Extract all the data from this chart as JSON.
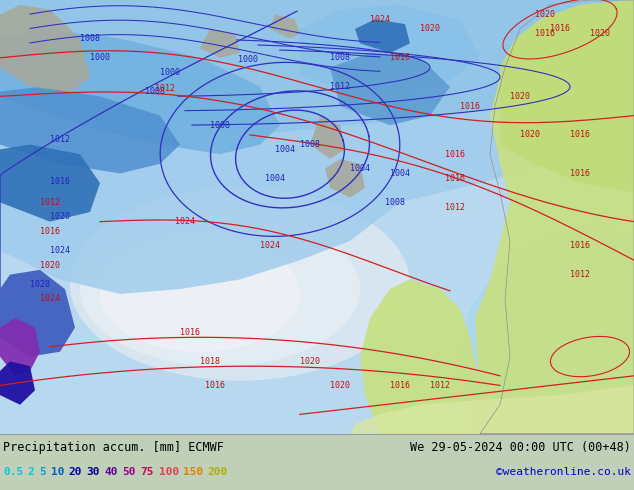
{
  "title_left": "Precipitation accum. [mm] ECMWF",
  "title_right": "We 29-05-2024 00:00 UTC (00+48)",
  "credit": "©weatheronline.co.uk",
  "legend_values": [
    "0.5",
    "2",
    "5",
    "10",
    "20",
    "30",
    "40",
    "50",
    "75",
    "100",
    "150",
    "200"
  ],
  "text_colors_legend": [
    "#00c8e0",
    "#00c8e0",
    "#00a8d0",
    "#0060c0",
    "#0000b0",
    "#000090",
    "#600090",
    "#a00080",
    "#d00060",
    "#e04050",
    "#e08000",
    "#b0b000"
  ],
  "fig_width": 6.34,
  "fig_height": 4.9,
  "dpi": 100,
  "font_size_title": 8.5,
  "font_size_legend": 8,
  "font_size_credit": 8,
  "title_color": "#000000",
  "credit_color": "#0000cc",
  "map_ocean": "#b0d8f0",
  "map_precip_light": "#a8d8f8",
  "map_precip_med": "#78b8ee",
  "map_precip_heavy": "#4090d8",
  "map_precip_dark": "#2060b8",
  "map_precip_darkest": "#1030a0",
  "map_precip_purple": "#6020a0",
  "map_high_center": "#e8e8f0",
  "map_land_green": "#d0e890",
  "map_land_gray": "#b8b8b8",
  "map_land_pale": "#d8d0c8",
  "bottom_bg": "#ffffff"
}
